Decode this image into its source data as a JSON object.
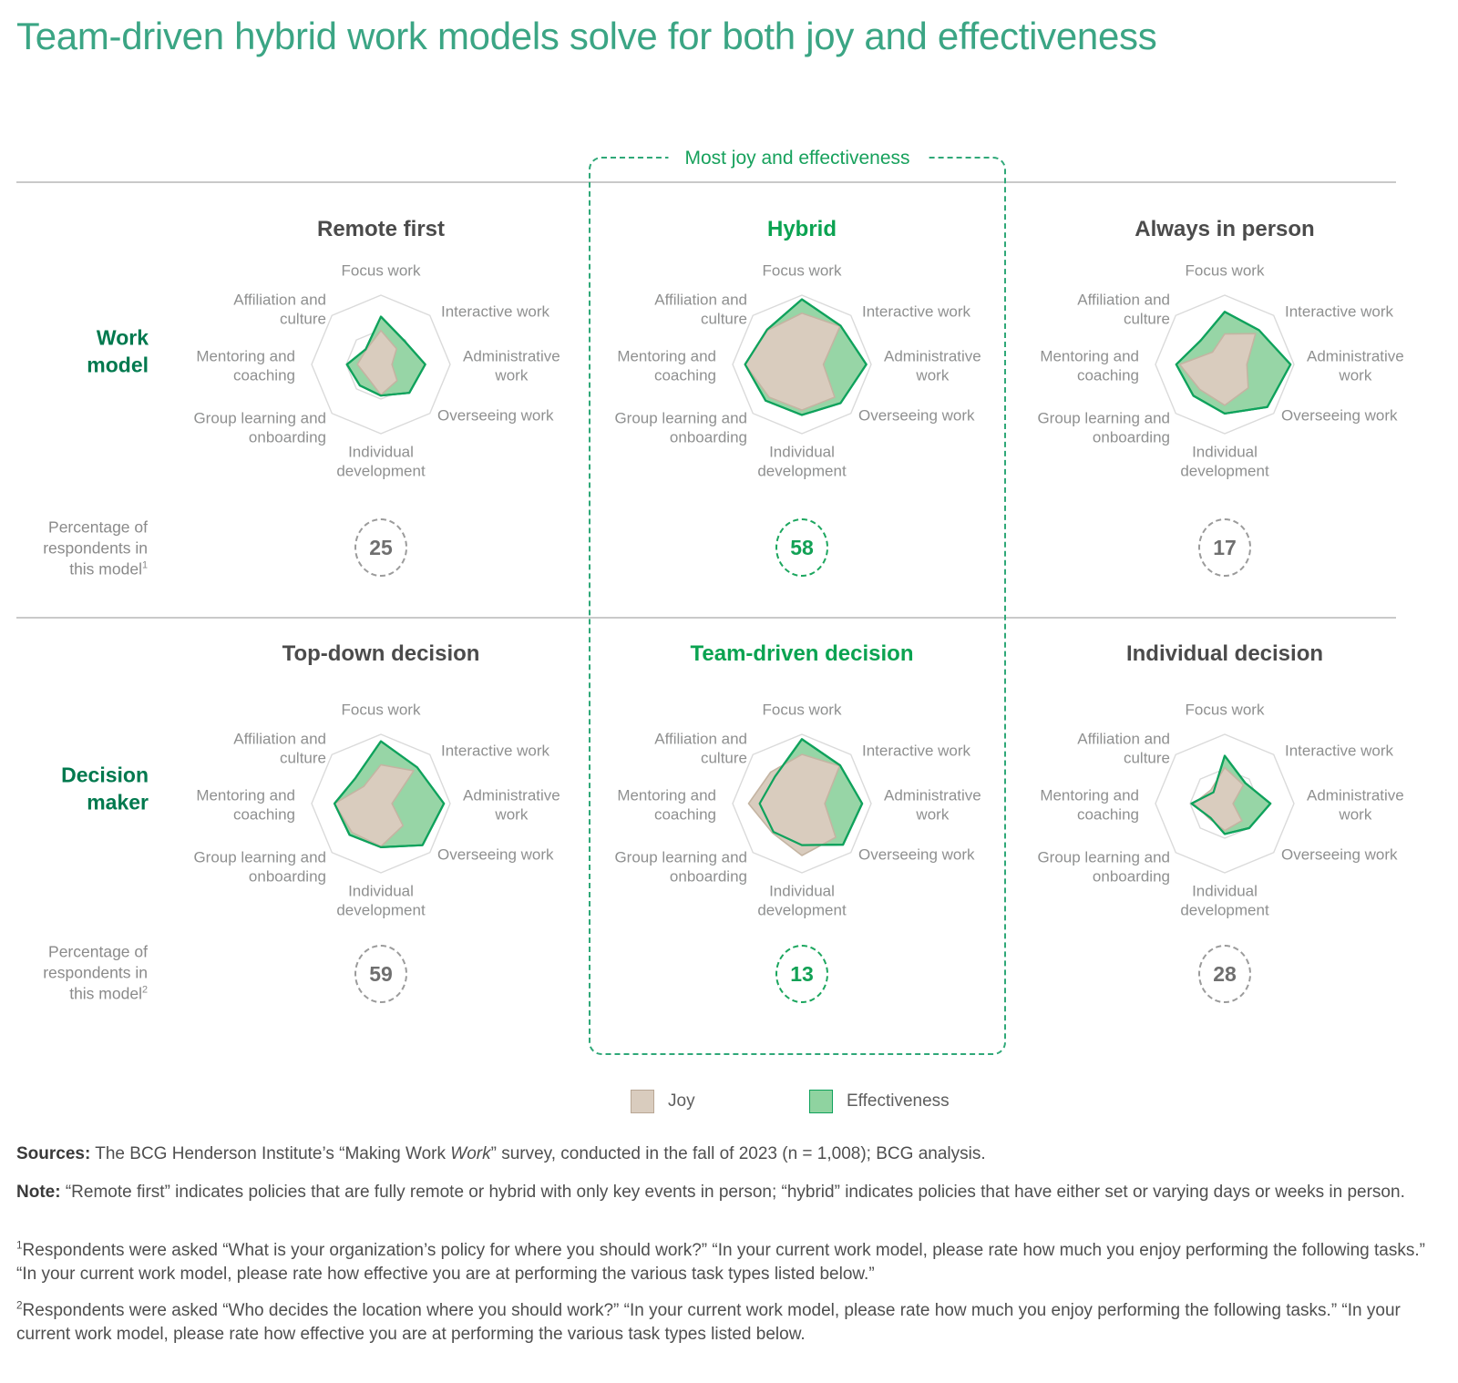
{
  "page_title": "Team-driven hybrid work models solve for both joy and effectiveness",
  "callout_label": "Most joy and effectiveness",
  "legend": {
    "joy": "Joy",
    "effectiveness": "Effectiveness"
  },
  "colors": {
    "title_green": "#3ba584",
    "highlight_green": "#0ba351",
    "row_label_green": "#00794e",
    "callout_green": "#2fa878",
    "effectiveness_fill": "#97d5a6",
    "effectiveness_stroke": "#0fa25c",
    "joy_fill": "#d9ccbe",
    "joy_stroke": "#c4b4a2",
    "grid_line": "#dadada",
    "axis_label_gray": "#8f9090",
    "chart_title_gray": "#4b4b4b"
  },
  "chart_data": {
    "type": "radar",
    "scale_max": 1,
    "grid_rings": [
      0.5,
      1
    ],
    "series_names": [
      "Joy",
      "Effectiveness"
    ],
    "axes": [
      {
        "label": "Focus work",
        "lines": [
          "Focus work"
        ]
      },
      {
        "label": "Interactive work",
        "lines": [
          "Interactive work"
        ]
      },
      {
        "label": "Administrative work",
        "lines": [
          "Administrative",
          "work"
        ]
      },
      {
        "label": "Overseeing work",
        "lines": [
          "Overseeing work"
        ]
      },
      {
        "label": "Individual development",
        "lines": [
          "Individual",
          "development"
        ]
      },
      {
        "label": "Group learning and onboarding",
        "lines": [
          "Group learning and",
          "onboarding"
        ]
      },
      {
        "label": "Mentoring and coaching",
        "lines": [
          "Mentoring and",
          "coaching"
        ]
      },
      {
        "label": "Affiliation and culture",
        "lines": [
          "Affiliation and",
          "culture"
        ]
      }
    ],
    "rows": [
      {
        "row_label": "Work model",
        "row_label_lines": [
          "Work",
          "model"
        ],
        "pct_label_lines": [
          "Percentage of",
          "respondents in",
          "this model"
        ],
        "pct_footnote_mark": "1",
        "charts": [
          {
            "title": "Remote first",
            "highlight": false,
            "percentage": "25",
            "percentage_highlight": false,
            "joy": [
              0.49,
              0.32,
              0.16,
              0.33,
              0.44,
              0.27,
              0.34,
              0.3
            ],
            "effectiveness": [
              0.69,
              0.48,
              0.64,
              0.58,
              0.45,
              0.43,
              0.49,
              0.31
            ]
          },
          {
            "title": "Hybrid",
            "highlight": true,
            "percentage": "58",
            "percentage_highlight": true,
            "joy": [
              0.74,
              0.78,
              0.31,
              0.67,
              0.66,
              0.67,
              0.82,
              0.7
            ],
            "effectiveness": [
              0.94,
              0.79,
              0.93,
              0.79,
              0.73,
              0.74,
              0.82,
              0.71
            ]
          },
          {
            "title": "Always in person",
            "highlight": false,
            "percentage": "17",
            "percentage_highlight": false,
            "joy": [
              0.44,
              0.63,
              0.32,
              0.48,
              0.59,
              0.51,
              0.65,
              0.25
            ],
            "effectiveness": [
              0.76,
              0.7,
              0.95,
              0.87,
              0.71,
              0.64,
              0.7,
              0.49
            ]
          }
        ]
      },
      {
        "row_label": "Decision maker",
        "row_label_lines": [
          "Decision",
          "maker"
        ],
        "pct_label_lines": [
          "Percentage of",
          "respondents in",
          "this model"
        ],
        "pct_footnote_mark": "2",
        "charts": [
          {
            "title": "Top-down decision",
            "highlight": false,
            "percentage": "59",
            "percentage_highlight": false,
            "joy": [
              0.56,
              0.67,
              0.16,
              0.45,
              0.62,
              0.59,
              0.67,
              0.35
            ],
            "effectiveness": [
              0.9,
              0.74,
              0.91,
              0.85,
              0.63,
              0.64,
              0.67,
              0.52
            ]
          },
          {
            "title": "Team-driven decision",
            "highlight": true,
            "percentage": "13",
            "percentage_highlight": true,
            "joy": [
              0.71,
              0.77,
              0.33,
              0.69,
              0.75,
              0.6,
              0.77,
              0.64
            ],
            "effectiveness": [
              0.93,
              0.78,
              0.87,
              0.84,
              0.6,
              0.58,
              0.61,
              0.55
            ]
          },
          {
            "title": "Individual decision",
            "highlight": false,
            "percentage": "28",
            "percentage_highlight": false,
            "joy": [
              0.52,
              0.38,
              0.12,
              0.35,
              0.39,
              0.31,
              0.45,
              0.28
            ],
            "effectiveness": [
              0.69,
              0.42,
              0.66,
              0.5,
              0.44,
              0.29,
              0.48,
              0.23
            ]
          }
        ]
      }
    ]
  },
  "footer": {
    "sources_label": "Sources:",
    "sources_text_1": " The BCG Henderson Institute’s “Making Work ",
    "sources_italic": "Work",
    "sources_text_2": "” survey, conducted in the fall of 2023 (n = 1,008); BCG analysis.",
    "note_label": "Note:",
    "note_text": " “Remote first” indicates policies that are fully remote or hybrid with only key events in person; “hybrid” indicates policies that have either set or varying days or weeks in person.",
    "footnote_1_mark": "1",
    "footnote_1_text": "Respondents were asked “What is your organization’s policy for where you should work?” “In your current work model, please rate how much you enjoy performing the following tasks.” “In your current work model, please rate how effective you are at performing the various task types listed below.”",
    "footnote_2_mark": "2",
    "footnote_2_text": "Respondents were asked “Who decides the location where you should work?” “In your current work model, please rate how much you enjoy performing the following tasks.” “In your current work model, please rate how effective you are at performing the various task types listed below."
  }
}
